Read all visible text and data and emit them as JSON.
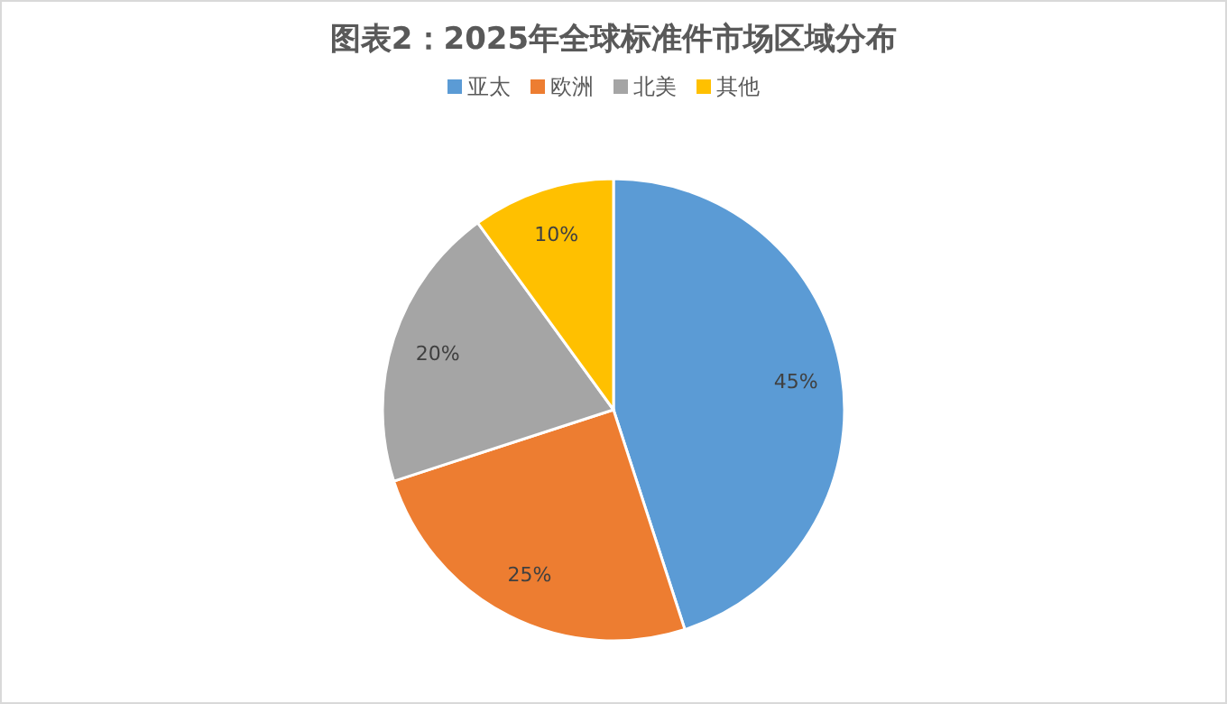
{
  "chart_data": {
    "type": "pie",
    "title": "图表2：2025年全球标准件市场区域分布",
    "categories": [
      "亚太",
      "欧洲",
      "北美",
      "其他"
    ],
    "values": [
      45,
      25,
      20,
      10
    ],
    "colors": [
      "#5b9bd5",
      "#ed7d31",
      "#a5a5a5",
      "#ffc000"
    ],
    "value_labels": [
      "45%",
      "25%",
      "20%",
      "10%"
    ],
    "legend": "top"
  }
}
